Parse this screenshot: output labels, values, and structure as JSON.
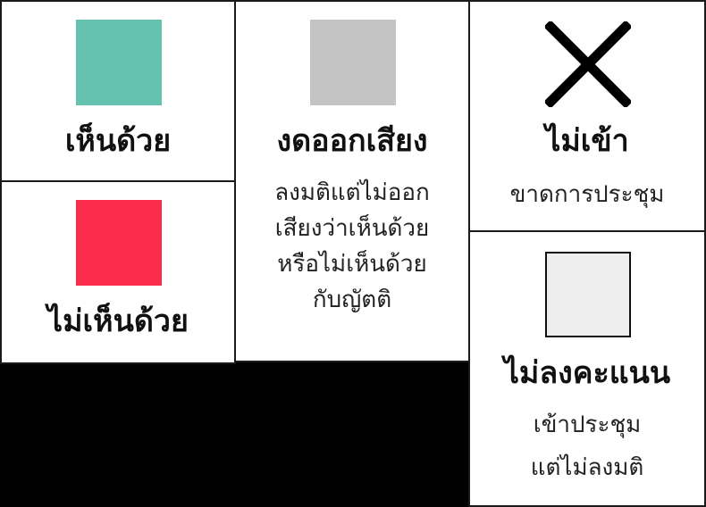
{
  "legend": {
    "yes": {
      "label": "เห็นด้วย",
      "color": "#64C2AE"
    },
    "no": {
      "label": "ไม่เห็นด้วย",
      "color": "#FB2D4A"
    },
    "abstain": {
      "label": "งดออกเสียง",
      "color": "#C4C4C4",
      "desc": [
        "ลงมติแต่ไม่ออก",
        "เสียงว่าเห็นด้วย",
        "หรือไม่เห็นด้วย",
        "กับญัตติ"
      ]
    },
    "absent": {
      "label": "ไม่เข้า",
      "icon": "x-icon",
      "desc": [
        "ขาดการประชุม"
      ]
    },
    "novote": {
      "label": "ไม่ลงคะแนน",
      "color": "#EEEEEE",
      "desc": [
        "เข้าประชุม",
        "แต่ไม่ลงมติ"
      ]
    }
  }
}
